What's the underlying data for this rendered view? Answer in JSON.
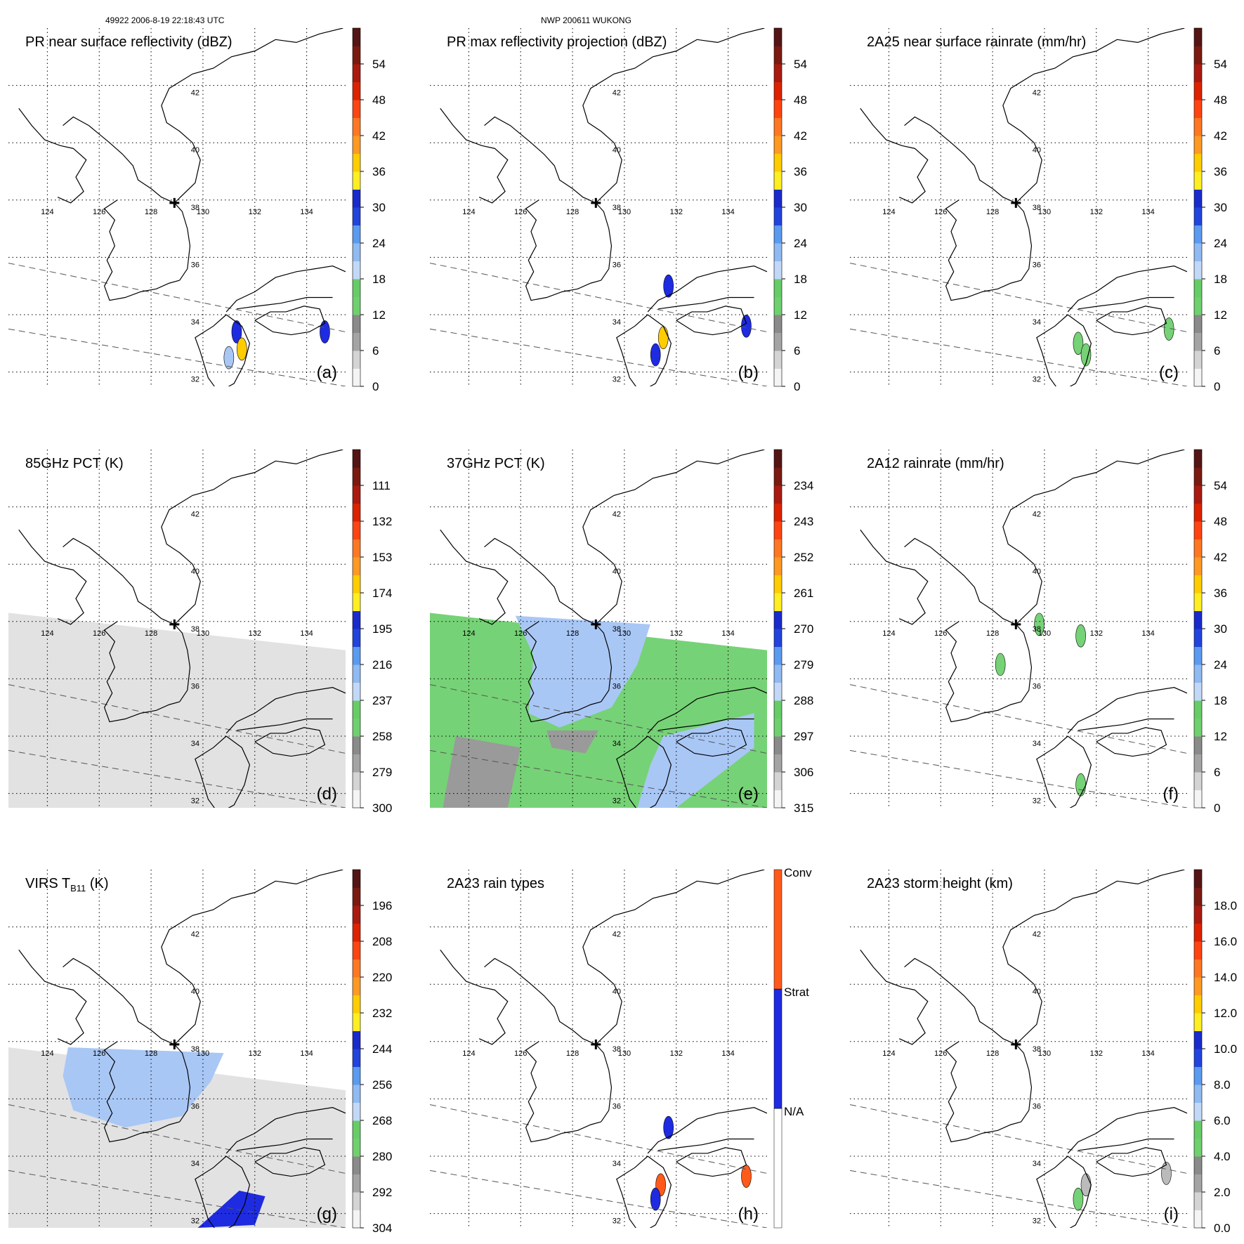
{
  "header": {
    "orbit_time": "49922 2006-8-19 22:18:43 UTC",
    "storm_name": "NWP 200611 WUKONG"
  },
  "colors": {
    "land_outline": "#000000",
    "grid": "#000000",
    "swath": "#555555",
    "green": "#76d276",
    "lightblue": "#a9c7f5",
    "blue": "#1e2be0",
    "gray": "#9a9a9a",
    "orange": "#ff5a1a",
    "colorbar": [
      "#f4f4f4",
      "#d4d4d4",
      "#a4a4a4",
      "#8a8a8a",
      "#6ed06e",
      "#66cc66",
      "#c2d8f8",
      "#8fbaf2",
      "#5a9af0",
      "#2244dd",
      "#1a2bcc",
      "#ffee22",
      "#ffcc00",
      "#ff9922",
      "#ff7722",
      "#ff4411",
      "#dd2200",
      "#aa1a10",
      "#7a1a10",
      "#551515"
    ]
  },
  "chart_data": [
    {
      "type": "heatmap",
      "panel_id": "a",
      "title": "PR near surface reflectivity (dBZ)",
      "panel_label": "(a)",
      "colorbar_ticks": [
        "0",
        "6",
        "12",
        "18",
        "24",
        "30",
        "36",
        "42",
        "48",
        "54"
      ],
      "lon_ticks": [
        "124",
        "126",
        "128",
        "130",
        "132",
        "134"
      ],
      "lat_ticks": [
        "32",
        "34",
        "36",
        "38",
        "40",
        "42"
      ],
      "lon_range": [
        122.5,
        135.5
      ],
      "lat_range": [
        31.5,
        44.0
      ],
      "storm_center": {
        "lon": 128.9,
        "lat": 37.9
      },
      "swath": "pr"
    },
    {
      "type": "heatmap",
      "panel_id": "b",
      "title": "PR max reflectivity projection (dBZ)",
      "panel_label": "(b)",
      "colorbar_ticks": [
        "0",
        "6",
        "12",
        "18",
        "24",
        "30",
        "36",
        "42",
        "48",
        "54"
      ],
      "lon_ticks": [
        "124",
        "126",
        "128",
        "130",
        "132",
        "134"
      ],
      "lat_ticks": [
        "32",
        "34",
        "36",
        "38",
        "40",
        "42"
      ],
      "lon_range": [
        122.5,
        135.5
      ],
      "lat_range": [
        31.5,
        44.0
      ],
      "storm_center": {
        "lon": 128.9,
        "lat": 37.9
      },
      "swath": "pr"
    },
    {
      "type": "heatmap",
      "panel_id": "c",
      "title": "2A25 near surface rainrate (mm/hr)",
      "panel_label": "(c)",
      "colorbar_ticks": [
        "0",
        "6",
        "12",
        "18",
        "24",
        "30",
        "36",
        "42",
        "48",
        "54"
      ],
      "lon_ticks": [
        "124",
        "126",
        "128",
        "130",
        "132",
        "134"
      ],
      "lat_ticks": [
        "32",
        "34",
        "36",
        "38",
        "40",
        "42"
      ],
      "lon_range": [
        122.5,
        135.5
      ],
      "lat_range": [
        31.5,
        44.0
      ],
      "storm_center": {
        "lon": 128.9,
        "lat": 37.9
      },
      "swath": "pr"
    },
    {
      "type": "heatmap",
      "panel_id": "d",
      "title": "85GHz PCT (K)",
      "panel_label": "(d)",
      "colorbar_ticks": [
        "300",
        "279",
        "258",
        "237",
        "216",
        "195",
        "174",
        "153",
        "132",
        "111"
      ],
      "lon_ticks": [
        "124",
        "126",
        "128",
        "130",
        "132",
        "134"
      ],
      "lat_ticks": [
        "32",
        "34",
        "36",
        "38",
        "40",
        "42"
      ],
      "lon_range": [
        122.5,
        135.5
      ],
      "lat_range": [
        31.5,
        44.0
      ],
      "storm_center": {
        "lon": 128.9,
        "lat": 37.9
      },
      "swath": "tmi"
    },
    {
      "type": "heatmap",
      "panel_id": "e",
      "title": "37GHz PCT (K)",
      "panel_label": "(e)",
      "colorbar_ticks": [
        "315",
        "306",
        "297",
        "288",
        "279",
        "270",
        "261",
        "252",
        "243",
        "234"
      ],
      "lon_ticks": [
        "124",
        "126",
        "128",
        "130",
        "132",
        "134"
      ],
      "lat_ticks": [
        "32",
        "34",
        "36",
        "38",
        "40",
        "42"
      ],
      "lon_range": [
        122.5,
        135.5
      ],
      "lat_range": [
        31.5,
        44.0
      ],
      "storm_center": {
        "lon": 128.9,
        "lat": 37.9
      },
      "swath": "tmi"
    },
    {
      "type": "heatmap",
      "panel_id": "f",
      "title": "2A12 rainrate (mm/hr)",
      "panel_label": "(f)",
      "colorbar_ticks": [
        "0",
        "6",
        "12",
        "18",
        "24",
        "30",
        "36",
        "42",
        "48",
        "54"
      ],
      "lon_ticks": [
        "124",
        "126",
        "128",
        "130",
        "132",
        "134"
      ],
      "lat_ticks": [
        "32",
        "34",
        "36",
        "38",
        "40",
        "42"
      ],
      "lon_range": [
        122.5,
        135.5
      ],
      "lat_range": [
        31.5,
        44.0
      ],
      "storm_center": {
        "lon": 128.9,
        "lat": 37.9
      },
      "swath": "pr"
    },
    {
      "type": "heatmap",
      "panel_id": "g",
      "title_main": "VIRS T",
      "title_sub": "B11",
      "title_unit": " (K)",
      "panel_label": "(g)",
      "colorbar_ticks": [
        "304",
        "292",
        "280",
        "268",
        "256",
        "244",
        "232",
        "220",
        "208",
        "196"
      ],
      "lon_ticks": [
        "124",
        "126",
        "128",
        "130",
        "132",
        "134"
      ],
      "lat_ticks": [
        "32",
        "34",
        "36",
        "38",
        "40",
        "42"
      ],
      "lon_range": [
        122.5,
        135.5
      ],
      "lat_range": [
        31.5,
        44.0
      ],
      "storm_center": {
        "lon": 128.9,
        "lat": 37.9
      },
      "swath": "virs"
    },
    {
      "type": "heatmap",
      "panel_id": "h",
      "title": "2A23 rain types",
      "panel_label": "(h)",
      "colorbar_categories": [
        "N/A",
        "Strat",
        "Conv"
      ],
      "lon_ticks": [
        "124",
        "126",
        "128",
        "130",
        "132",
        "134"
      ],
      "lat_ticks": [
        "32",
        "34",
        "36",
        "38",
        "40",
        "42"
      ],
      "lon_range": [
        122.5,
        135.5
      ],
      "lat_range": [
        31.5,
        44.0
      ],
      "storm_center": {
        "lon": 128.9,
        "lat": 37.9
      },
      "swath": "pr"
    },
    {
      "type": "heatmap",
      "panel_id": "i",
      "title": "2A23 storm height (km)",
      "panel_label": "(i)",
      "colorbar_ticks": [
        "0.0",
        "2.0",
        "4.0",
        "6.0",
        "8.0",
        "10.0",
        "12.0",
        "14.0",
        "16.0",
        "18.0"
      ],
      "lon_ticks": [
        "124",
        "126",
        "128",
        "130",
        "132",
        "134"
      ],
      "lat_ticks": [
        "32",
        "34",
        "36",
        "38",
        "40",
        "42"
      ],
      "lon_range": [
        122.5,
        135.5
      ],
      "lat_range": [
        31.5,
        44.0
      ],
      "storm_center": {
        "lon": 128.9,
        "lat": 37.9
      },
      "swath": "pr"
    }
  ]
}
